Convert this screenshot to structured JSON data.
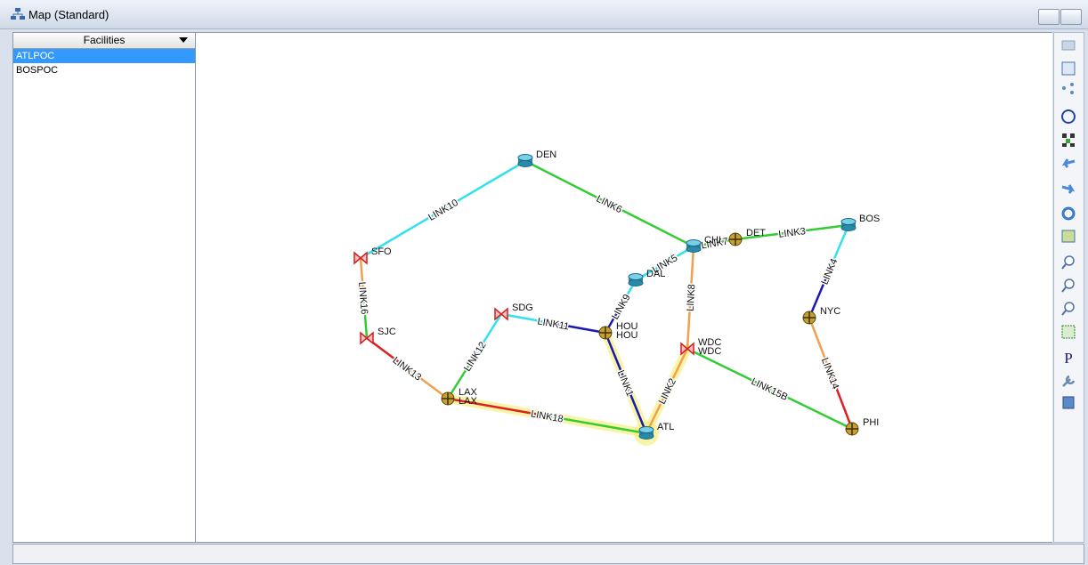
{
  "window": {
    "title": "Map (Standard)"
  },
  "sidebar": {
    "header": "Facilities",
    "items": [
      "ATLPOC",
      "BOSPOC"
    ]
  },
  "map": {
    "nodes": [
      [
        "DEN"
      ],
      [
        "SFO"
      ],
      [
        "SJC"
      ],
      [
        "SDG"
      ],
      [
        "LAX",
        "LAX"
      ],
      [
        "HOU",
        "HOU"
      ],
      [
        "DAL"
      ],
      [
        "CHI"
      ],
      [
        "DET"
      ],
      [
        "BOS"
      ],
      [
        "NYC"
      ],
      [
        "WDC",
        "WDC"
      ],
      [
        "ATL"
      ],
      [
        "PHI"
      ]
    ],
    "links": [
      "LINK10",
      "LINK6",
      "LINK16",
      "LINK13",
      "LINK12",
      "LINK11",
      "LINK18",
      "LINK1",
      "LINK9",
      "LINK5",
      "LINK7",
      "LINK3",
      "LINK8",
      "LINK2",
      "LINK15B",
      "LINK4",
      "LINK14"
    ]
  },
  "toolbar": {
    "text_icon": "P"
  }
}
